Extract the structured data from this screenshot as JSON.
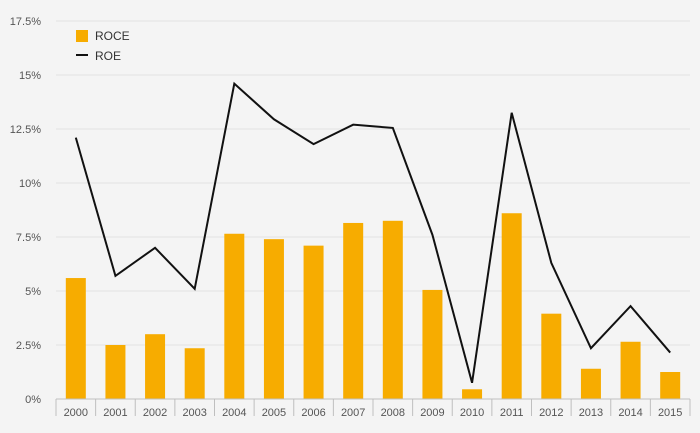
{
  "chart_data": {
    "type": "bar",
    "categories": [
      "2000",
      "2001",
      "2002",
      "2003",
      "2004",
      "2005",
      "2006",
      "2007",
      "2008",
      "2009",
      "2010",
      "2011",
      "2012",
      "2013",
      "2014",
      "2015"
    ],
    "series": [
      {
        "name": "ROCE",
        "type": "bar",
        "color": "#f7ac00",
        "values": [
          5.6,
          2.5,
          3.0,
          2.35,
          7.65,
          7.4,
          7.1,
          8.15,
          8.25,
          5.05,
          0.45,
          8.6,
          3.95,
          1.4,
          2.65,
          1.25
        ]
      },
      {
        "name": "ROE",
        "type": "line",
        "color": "#111111",
        "values": [
          12.1,
          5.7,
          7.0,
          5.1,
          14.6,
          12.95,
          11.8,
          12.7,
          12.55,
          7.6,
          0.75,
          13.25,
          6.3,
          2.35,
          4.3,
          2.15
        ]
      }
    ],
    "ylim": [
      0,
      17.5
    ],
    "yticks": [
      "0%",
      "2.5%",
      "5%",
      "7.5%",
      "10%",
      "12.5%",
      "15%",
      "17.5%"
    ],
    "grid": true,
    "legend_position": "top-left",
    "title": "",
    "xlabel": "",
    "ylabel": ""
  }
}
